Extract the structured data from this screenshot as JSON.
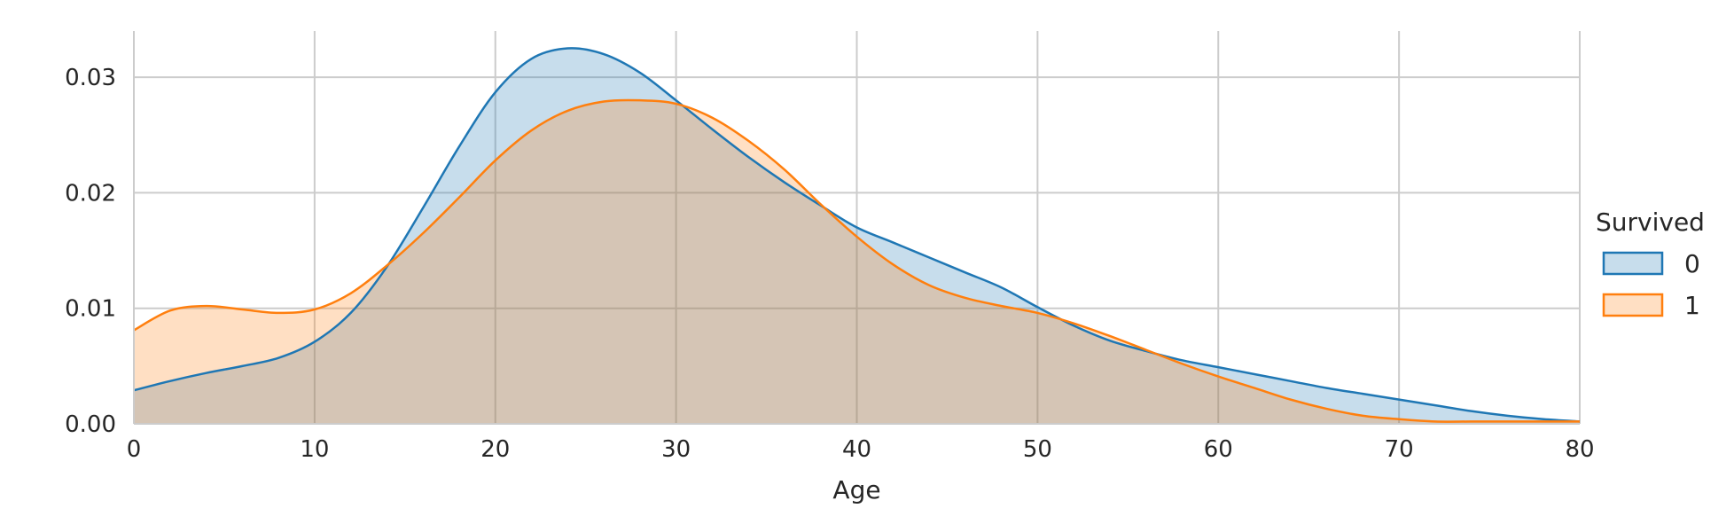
{
  "chart_data": {
    "type": "area",
    "title": "",
    "xlabel": "Age",
    "ylabel": "",
    "xlim": [
      0,
      80
    ],
    "ylim": [
      0,
      0.034
    ],
    "x_ticks": [
      0,
      10,
      20,
      30,
      40,
      50,
      60,
      70,
      80
    ],
    "x_tick_labels": [
      "0",
      "10",
      "20",
      "30",
      "40",
      "50",
      "60",
      "70",
      "80"
    ],
    "y_ticks": [
      0,
      0.01,
      0.02,
      0.03
    ],
    "y_tick_labels": [
      "0.00",
      "0.01",
      "0.02",
      "0.03"
    ],
    "grid": true,
    "legend": {
      "title": "Survived",
      "position": "right"
    },
    "series": [
      {
        "name": "0",
        "color": "#1f77b4",
        "fill": "#c5d9ec",
        "x": [
          0,
          2,
          4,
          6,
          8,
          10,
          12,
          14,
          16,
          18,
          20,
          22,
          24,
          26,
          28,
          30,
          32,
          34,
          36,
          38,
          40,
          42,
          44,
          46,
          48,
          50,
          52,
          54,
          56,
          58,
          60,
          62,
          64,
          66,
          68,
          70,
          72,
          74,
          76,
          78,
          80
        ],
        "values": [
          0.0029,
          0.0037,
          0.0044,
          0.005,
          0.0057,
          0.0071,
          0.0096,
          0.0136,
          0.0187,
          0.024,
          0.0287,
          0.0316,
          0.0325,
          0.032,
          0.0304,
          0.028,
          0.0255,
          0.0231,
          0.0209,
          0.0189,
          0.017,
          0.0157,
          0.0144,
          0.0131,
          0.0118,
          0.0101,
          0.0085,
          0.0072,
          0.0063,
          0.0055,
          0.0049,
          0.0043,
          0.0037,
          0.0031,
          0.0026,
          0.0021,
          0.0016,
          0.0011,
          0.0007,
          0.0004,
          0.0002
        ]
      },
      {
        "name": "1",
        "color": "#ff7f0e",
        "fill": "#ffdab8",
        "x": [
          0,
          2,
          4,
          6,
          8,
          10,
          12,
          14,
          16,
          18,
          20,
          22,
          24,
          26,
          28,
          30,
          32,
          34,
          36,
          38,
          40,
          42,
          44,
          46,
          48,
          50,
          52,
          54,
          56,
          58,
          60,
          62,
          64,
          66,
          68,
          70,
          72,
          74,
          76,
          78,
          80
        ],
        "values": [
          0.0081,
          0.0098,
          0.0102,
          0.0099,
          0.0096,
          0.0099,
          0.0113,
          0.0137,
          0.0165,
          0.0196,
          0.0228,
          0.0254,
          0.0271,
          0.0279,
          0.028,
          0.0277,
          0.0265,
          0.0245,
          0.022,
          0.019,
          0.0162,
          0.0138,
          0.012,
          0.0109,
          0.0102,
          0.0096,
          0.0087,
          0.0076,
          0.0064,
          0.0052,
          0.0041,
          0.0031,
          0.0021,
          0.0013,
          0.0007,
          0.0004,
          0.0002,
          0.0002,
          0.0002,
          0.0002,
          0.0002
        ]
      }
    ]
  }
}
